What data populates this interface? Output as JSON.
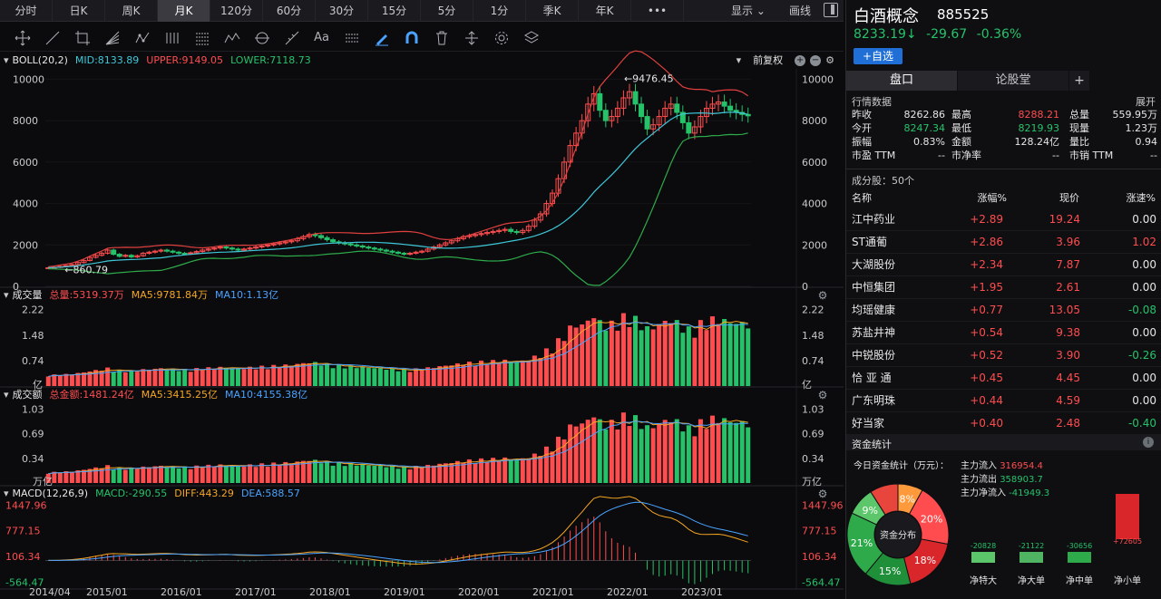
{
  "period_tabs": [
    "分时",
    "日K",
    "周K",
    "月K",
    "120分",
    "60分",
    "30分",
    "15分",
    "5分",
    "1分",
    "季K",
    "年K",
    "•••"
  ],
  "active_tab": 3,
  "topbar_right": {
    "display": "显示",
    "draw": "画线"
  },
  "stock": {
    "name": "白酒概念",
    "code": "885525",
    "price": "8233.19↓",
    "change": "-29.67",
    "pct": "-0.36%",
    "add_watch": "+自选"
  },
  "tabs_right": {
    "pankou": "盘口",
    "forum": "论股堂",
    "plus": "+"
  },
  "quote": {
    "title": "行情数据",
    "expand": "展开",
    "rows": [
      [
        "昨收",
        "8262.86",
        "最高",
        "8288.21",
        "总量",
        "559.95万"
      ],
      [
        "今开",
        "8247.34",
        "最低",
        "8219.93",
        "现量",
        "1.23万"
      ],
      [
        "振幅",
        "0.83%",
        "金额",
        "128.24亿",
        "量比",
        "0.94"
      ],
      [
        "市盈 TTM",
        "--",
        "市净率",
        "--",
        "市销 TTM",
        "--"
      ]
    ]
  },
  "components": {
    "title": "成分股：50个",
    "headers": [
      "名称",
      "涨幅%",
      "现价",
      "涨速%"
    ],
    "rows": [
      [
        "江中药业",
        "+2.89",
        "19.24",
        "0.00"
      ],
      [
        "ST通葡",
        "+2.86",
        "3.96",
        "1.02"
      ],
      [
        "大湖股份",
        "+2.34",
        "7.87",
        "0.00"
      ],
      [
        "中恒集团",
        "+1.95",
        "2.61",
        "0.00"
      ],
      [
        "均瑶健康",
        "+0.77",
        "13.05",
        "-0.08"
      ],
      [
        "苏盐井神",
        "+0.54",
        "9.38",
        "0.00"
      ],
      [
        "中锐股份",
        "+0.52",
        "3.90",
        "-0.26"
      ],
      [
        "恰 亚 通",
        "+0.45",
        "4.45",
        "0.00"
      ],
      [
        "广东明珠",
        "+0.44",
        "4.59",
        "0.00"
      ],
      [
        "好当家",
        "+0.40",
        "2.48",
        "-0.40"
      ]
    ]
  },
  "fund": {
    "title": "资金统计",
    "today": "今日资金统计（万元）：",
    "inflow_label": "主力流入",
    "inflow": "316954.4",
    "outflow_label": "主力流出",
    "outflow": "358903.7",
    "net_label": "主力净流入",
    "net": "-41949.3",
    "donut_center": "资金分布",
    "donut": [
      {
        "label": "8%",
        "value": 8,
        "color": "#ff9a3c"
      },
      {
        "label": "20%",
        "value": 20,
        "color": "#ff4d4f"
      },
      {
        "label": "18%",
        "value": 18,
        "color": "#d9262a"
      },
      {
        "label": "15%",
        "value": 15,
        "color": "#1f8f3a"
      },
      {
        "label": "21%",
        "value": 21,
        "color": "#2eaa4a"
      },
      {
        "label": "9%",
        "value": 9,
        "color": "#5cc76a"
      },
      {
        "label": "",
        "value": 9,
        "color": "#e8453c"
      }
    ],
    "bars": [
      {
        "name": "净特大",
        "value": -20828,
        "label": "-20828"
      },
      {
        "name": "净大单",
        "value": -21122,
        "label": "-21122"
      },
      {
        "name": "净中单",
        "value": -30656,
        "label": "-30656"
      },
      {
        "name": "净小单",
        "value": 72605,
        "label": "+72605"
      }
    ]
  },
  "boll": {
    "label": "BOLL(20,2)",
    "mid": "MID:8133.89",
    "upper": "UPPER:9149.05",
    "lower": "LOWER:7118.73",
    "adj": "前复权",
    "hi_label": "9476.45",
    "lo_label": "860.79"
  },
  "vol": {
    "label": "成交量",
    "total": "总量:5319.37万",
    "ma5": "MA5:9781.84万",
    "ma10": "MA10:1.13亿"
  },
  "amt": {
    "label": "成交额",
    "total": "总金额:1481.24亿",
    "ma5": "MA5:3415.25亿",
    "ma10": "MA10:4155.38亿"
  },
  "macd": {
    "label": "MACD(12,26,9)",
    "macd": "MACD:-290.55",
    "diff": "DIFF:443.29",
    "dea": "DEA:588.57"
  },
  "chart_data": [
    {
      "type": "candlestick",
      "title": "BOLL(20,2)",
      "y_ticks": [
        0,
        2000,
        4000,
        6000,
        8000,
        10000
      ],
      "ylim": [
        0,
        10500
      ],
      "x_ticks": [
        "2014/04",
        "2015/01",
        "2016/01",
        "2017/01",
        "2018/01",
        "2019/01",
        "2020/01",
        "2021/01",
        "2022/01",
        "2023/01"
      ],
      "close_path": [
        900,
        920,
        960,
        1000,
        1050,
        1150,
        1250,
        1400,
        1500,
        1600,
        1750,
        1550,
        1450,
        1500,
        1420,
        1480,
        1600,
        1650,
        1700,
        1750,
        1700,
        1650,
        1600,
        1580,
        1620,
        1680,
        1750,
        1800,
        1850,
        1900,
        1850,
        1800,
        1750,
        1800,
        1850,
        1900,
        1950,
        2000,
        2050,
        2100,
        2150,
        2200,
        2300,
        2400,
        2500,
        2450,
        2350,
        2250,
        2150,
        2100,
        2050,
        2000,
        1950,
        1900,
        1850,
        1800,
        1750,
        1700,
        1650,
        1600,
        1550,
        1600,
        1650,
        1700,
        1800,
        1900,
        2000,
        2100,
        2200,
        2300,
        2400,
        2450,
        2500,
        2550,
        2600,
        2650,
        2700,
        2750,
        2650,
        2600,
        2700,
        2900,
        3200,
        3500,
        4000,
        4500,
        5200,
        6000,
        6800,
        7400,
        8000,
        8800,
        9300,
        8500,
        8000,
        8200,
        8600,
        9100,
        9400,
        8800,
        8200,
        7600,
        7800,
        8200,
        8600,
        8800,
        8400,
        7900,
        7400,
        7700,
        8200,
        8600,
        8800,
        8900,
        8700,
        8500,
        8400,
        8300,
        8233
      ]
    },
    {
      "type": "bar",
      "title": "成交量",
      "y_ticks": [
        0.74,
        1.48,
        2.22
      ],
      "unit": "亿"
    },
    {
      "type": "bar",
      "title": "成交额",
      "y_ticks": [
        0.34,
        0.69,
        1.03
      ],
      "unit": "万亿"
    },
    {
      "type": "bar",
      "title": "MACD(12,26,9)",
      "y_ticks": [
        -564.47,
        106.34,
        777.15,
        1447.96
      ]
    }
  ]
}
